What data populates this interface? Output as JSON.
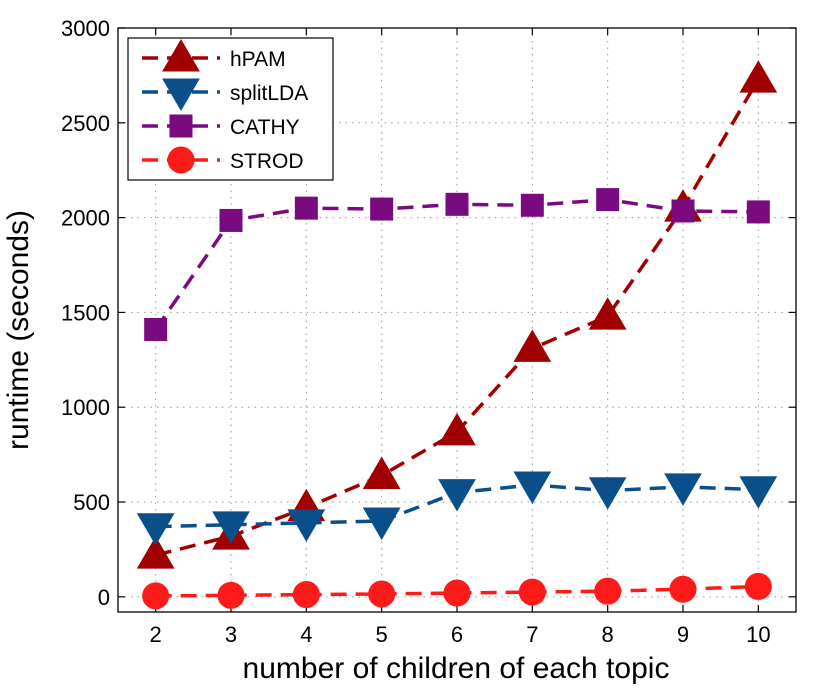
{
  "chart_data": {
    "type": "line",
    "xlabel": "number of children of each topic",
    "ylabel": "runtime (seconds)",
    "x": [
      2,
      3,
      4,
      5,
      6,
      7,
      8,
      9,
      10
    ],
    "xlim": [
      1.5,
      10.5
    ],
    "ylim": [
      -80,
      3000
    ],
    "xticks": [
      "2",
      "3",
      "4",
      "5",
      "6",
      "7",
      "8",
      "9",
      "10"
    ],
    "yticks": [
      "0",
      "500",
      "1000",
      "1500",
      "2000",
      "2500",
      "3000"
    ],
    "ytick_values": [
      0,
      500,
      1000,
      1500,
      2000,
      2500,
      3000
    ],
    "grid": true,
    "legend_position": "top-left",
    "series": [
      {
        "name": "hPAM",
        "color": "#a00000",
        "marker": "triangle-up",
        "values": [
          220,
          320,
          470,
          640,
          870,
          1310,
          1480,
          2050,
          2730
        ]
      },
      {
        "name": "splitLDA",
        "color": "#0b4f8a",
        "marker": "triangle-down",
        "values": [
          370,
          380,
          390,
          400,
          550,
          590,
          560,
          580,
          565
        ]
      },
      {
        "name": "CATHY",
        "color": "#7a0a80",
        "marker": "square",
        "values": [
          1410,
          1985,
          2050,
          2045,
          2070,
          2065,
          2095,
          2035,
          2030
        ]
      },
      {
        "name": "STROD",
        "color": "#ff1a1a",
        "marker": "circle",
        "values": [
          5,
          8,
          12,
          15,
          20,
          25,
          30,
          40,
          55
        ]
      }
    ]
  }
}
